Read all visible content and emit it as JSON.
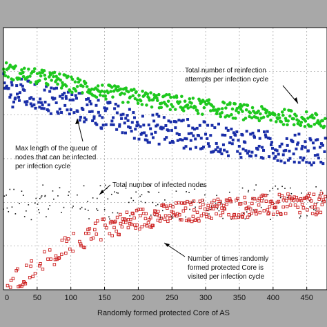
{
  "chart_data": {
    "type": "scatter",
    "title": "",
    "xlabel": "Randomly formed protected Core of AS",
    "ylabel": "",
    "xlim": [
      0,
      480
    ],
    "x_ticks": [
      "0",
      "50",
      "100",
      "150",
      "200",
      "250",
      "300",
      "350",
      "400",
      "450"
    ],
    "grid": true,
    "legend": "none",
    "series": [
      {
        "key": "reinfection",
        "color": "#1ec81e",
        "marker": "circle",
        "x": [
          0,
          20,
          40,
          60,
          80,
          100,
          120,
          140,
          160,
          180,
          200,
          220,
          240,
          260,
          280,
          300,
          320,
          340,
          360,
          380,
          400,
          420,
          440,
          460,
          480
        ],
        "y": [
          5.05,
          4.95,
          4.9,
          4.85,
          4.8,
          4.7,
          4.65,
          4.55,
          4.5,
          4.45,
          4.4,
          4.35,
          4.3,
          4.27,
          4.22,
          4.18,
          4.14,
          4.1,
          4.06,
          4.02,
          3.98,
          3.95,
          3.92,
          3.88,
          3.85
        ],
        "spread": 0.18
      },
      {
        "key": "queue",
        "color": "#1a2ea8",
        "marker": "square",
        "x": [
          0,
          20,
          40,
          60,
          80,
          100,
          120,
          140,
          160,
          180,
          200,
          220,
          240,
          260,
          280,
          300,
          320,
          340,
          360,
          380,
          400,
          420,
          440,
          460,
          480
        ],
        "y": [
          4.6,
          4.5,
          4.45,
          4.4,
          4.3,
          4.25,
          4.15,
          4.05,
          3.95,
          3.85,
          3.75,
          3.7,
          3.65,
          3.6,
          3.55,
          3.5,
          3.45,
          3.4,
          3.35,
          3.3,
          3.28,
          3.25,
          3.22,
          3.2,
          3.18
        ],
        "spread": 0.35
      },
      {
        "key": "infected",
        "color": "#111111",
        "marker": "dot",
        "x": [
          0,
          20,
          40,
          60,
          80,
          100,
          120,
          140,
          160,
          180,
          200,
          220,
          240,
          260,
          280,
          300,
          320,
          340,
          360,
          380,
          400,
          420,
          440,
          460,
          480
        ],
        "y": [
          2.0,
          2.0,
          2.0,
          2.0,
          2.0,
          2.0,
          2.0,
          2.0,
          2.0,
          2.0,
          2.0,
          2.0,
          2.0,
          2.0,
          2.0,
          2.0,
          2.0,
          2.0,
          2.0,
          2.0,
          2.0,
          2.0,
          2.0,
          2.0,
          2.0
        ],
        "spread": 0.4
      },
      {
        "key": "visited",
        "color": "#cc2020",
        "marker": "open-square",
        "x": [
          0,
          20,
          40,
          60,
          80,
          100,
          120,
          140,
          160,
          180,
          200,
          220,
          240,
          260,
          280,
          300,
          320,
          340,
          360,
          380,
          400,
          420,
          440,
          460,
          480
        ],
        "y": [
          0.1,
          0.25,
          0.45,
          0.65,
          0.85,
          1.05,
          1.2,
          1.35,
          1.45,
          1.55,
          1.62,
          1.68,
          1.72,
          1.76,
          1.8,
          1.83,
          1.86,
          1.88,
          1.9,
          1.92,
          1.93,
          1.94,
          1.95,
          1.96,
          1.97
        ],
        "spread": 0.25
      }
    ],
    "annotations": [
      {
        "text_lines": [
          "Total number of reinfection",
          "attempts per infection cycle"
        ]
      },
      {
        "text_lines": [
          "Max length of the queue of",
          "nodes that can be infected",
          "per infection cycle"
        ]
      },
      {
        "text_lines": [
          "Total number of infected nodes"
        ]
      },
      {
        "text_lines": [
          "Number of times randomly",
          "formed protected Core is",
          "visited per infection cycle"
        ]
      }
    ]
  }
}
